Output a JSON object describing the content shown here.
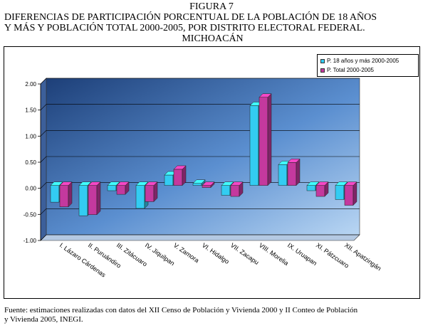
{
  "figure": {
    "label": "FIGURA 7",
    "title_line1": "DIFERENCIAS DE PARTICIPACIÓN PORCENTUAL DE LA POBLACIÓN DE 18 AÑOS",
    "title_line2": "Y MÁS Y POBLACIÓN TOTAL 2000-2005, POR DISTRITO ELECTORAL FEDERAL.",
    "title_line3": "MICHOACÁN"
  },
  "source": {
    "line1": "Fuente: estimaciones realizadas con datos del XII Censo de Población y Vivienda 2000 y II Conteo de Población",
    "line2": "y Vivienda 2005, INEGI."
  },
  "chart_data": {
    "type": "bar",
    "categories": [
      "I. Lázaro Cárdenas",
      "II. Puruándiro",
      "III. Zitácuaro",
      "IV. Jiquilpan",
      "V. Zamora",
      "VI. Hidalgo",
      "VII. Zacapu",
      "VIII. Morelia",
      "IX. Uruapan",
      "XI. Pátzcuaro",
      "XII. Apatzingán"
    ],
    "series": [
      {
        "name": "P. 18 años y más 2000-2005",
        "color": "#33ccf2",
        "values": [
          -0.32,
          -0.58,
          -0.1,
          -0.44,
          0.2,
          0.04,
          -0.19,
          1.53,
          0.4,
          -0.1,
          -0.27
        ]
      },
      {
        "name": "P. Total 2000-2005",
        "color": "#c4399e",
        "values": [
          -0.41,
          -0.56,
          -0.17,
          -0.31,
          0.31,
          -0.04,
          -0.21,
          1.69,
          0.44,
          -0.21,
          -0.38
        ]
      }
    ],
    "ylim": [
      -1.0,
      2.0
    ],
    "yticks": [
      "2.00",
      "1.50",
      "1.00",
      "0.50",
      "0.00",
      "-0.50",
      "-1.00"
    ],
    "grid": true,
    "legend_position": "top-right",
    "title": "",
    "xlabel": "",
    "ylabel": ""
  }
}
